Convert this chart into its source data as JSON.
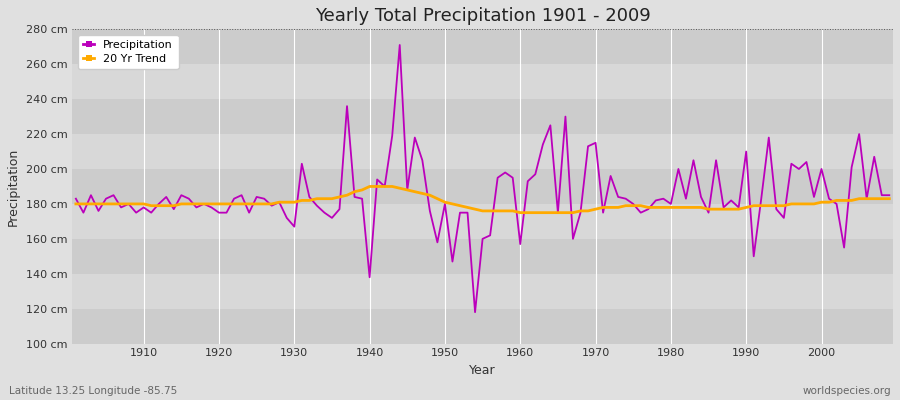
{
  "title": "Yearly Total Precipitation 1901 - 2009",
  "xlabel": "Year",
  "ylabel": "Precipitation",
  "subtitle_left": "Latitude 13.25 Longitude -85.75",
  "subtitle_right": "worldspecies.org",
  "ylim": [
    100,
    280
  ],
  "yticks": [
    100,
    120,
    140,
    160,
    180,
    200,
    220,
    240,
    260,
    280
  ],
  "ytick_labels": [
    "100 cm",
    "120 cm",
    "140 cm",
    "160 cm",
    "180 cm",
    "200 cm",
    "220 cm",
    "240 cm",
    "260 cm",
    "280 cm"
  ],
  "xticks": [
    1910,
    1920,
    1930,
    1940,
    1950,
    1960,
    1970,
    1980,
    1990,
    2000
  ],
  "precip_color": "#bb00bb",
  "trend_color": "#ffaa00",
  "bg_color": "#e0e0e0",
  "band_light": "#d8d8d8",
  "band_dark": "#cccccc",
  "years": [
    1901,
    1902,
    1903,
    1904,
    1905,
    1906,
    1907,
    1908,
    1909,
    1910,
    1911,
    1912,
    1913,
    1914,
    1915,
    1916,
    1917,
    1918,
    1919,
    1920,
    1921,
    1922,
    1923,
    1924,
    1925,
    1926,
    1927,
    1928,
    1929,
    1930,
    1931,
    1932,
    1933,
    1934,
    1935,
    1936,
    1937,
    1938,
    1939,
    1940,
    1941,
    1942,
    1943,
    1944,
    1945,
    1946,
    1947,
    1948,
    1949,
    1950,
    1951,
    1952,
    1953,
    1954,
    1955,
    1956,
    1957,
    1958,
    1959,
    1960,
    1961,
    1962,
    1963,
    1964,
    1965,
    1966,
    1967,
    1968,
    1969,
    1970,
    1971,
    1972,
    1973,
    1974,
    1975,
    1976,
    1977,
    1978,
    1979,
    1980,
    1981,
    1982,
    1983,
    1984,
    1985,
    1986,
    1987,
    1988,
    1989,
    1990,
    1991,
    1992,
    1993,
    1994,
    1995,
    1996,
    1997,
    1998,
    1999,
    2000,
    2001,
    2002,
    2003,
    2004,
    2005,
    2006,
    2007,
    2008,
    2009
  ],
  "precipitation": [
    183,
    175,
    185,
    176,
    183,
    185,
    178,
    180,
    175,
    178,
    175,
    180,
    184,
    177,
    185,
    183,
    178,
    180,
    178,
    175,
    175,
    183,
    185,
    175,
    184,
    183,
    179,
    181,
    172,
    167,
    203,
    184,
    179,
    175,
    172,
    177,
    236,
    184,
    183,
    138,
    194,
    190,
    219,
    271,
    188,
    218,
    205,
    176,
    158,
    180,
    147,
    175,
    175,
    118,
    160,
    162,
    195,
    198,
    195,
    157,
    193,
    197,
    214,
    225,
    175,
    230,
    160,
    175,
    213,
    215,
    175,
    196,
    184,
    183,
    180,
    175,
    177,
    182,
    183,
    180,
    200,
    183,
    205,
    184,
    175,
    205,
    178,
    182,
    178,
    210,
    150,
    183,
    218,
    177,
    172,
    203,
    200,
    204,
    184,
    200,
    183,
    180,
    155,
    201,
    220,
    183,
    207,
    185,
    185
  ],
  "trend": [
    180,
    180,
    180,
    180,
    180,
    180,
    180,
    180,
    180,
    180,
    179,
    179,
    179,
    179,
    180,
    180,
    180,
    180,
    180,
    180,
    180,
    180,
    180,
    180,
    180,
    180,
    180,
    181,
    181,
    181,
    182,
    182,
    183,
    183,
    183,
    184,
    185,
    187,
    188,
    190,
    190,
    190,
    190,
    189,
    188,
    187,
    186,
    185,
    183,
    181,
    180,
    179,
    178,
    177,
    176,
    176,
    176,
    176,
    176,
    175,
    175,
    175,
    175,
    175,
    175,
    175,
    175,
    176,
    176,
    177,
    178,
    178,
    178,
    179,
    179,
    179,
    178,
    178,
    178,
    178,
    178,
    178,
    178,
    178,
    177,
    177,
    177,
    177,
    177,
    178,
    179,
    179,
    179,
    179,
    179,
    180,
    180,
    180,
    180,
    181,
    181,
    182,
    182,
    182,
    183,
    183,
    183,
    183,
    183
  ]
}
